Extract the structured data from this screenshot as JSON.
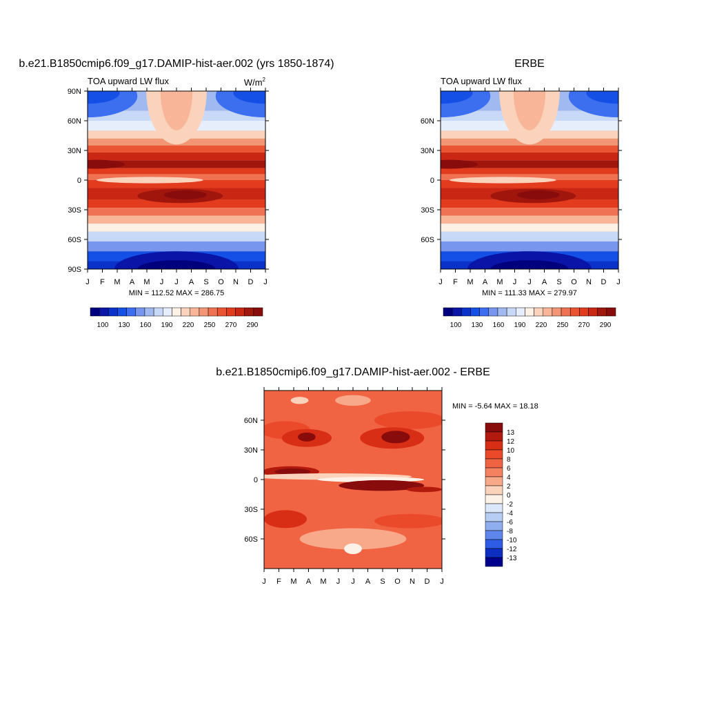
{
  "chart_data": [
    {
      "type": "heatmap",
      "title": "b.e21.B1850cmip6.f09_g17.DAMIP-hist-aer.002 (yrs 1850-1874)",
      "subtitle": "TOA upward LW flux",
      "units_base": "W/m",
      "units_exp": "2",
      "x_ticks": [
        "J",
        "F",
        "M",
        "A",
        "M",
        "J",
        "J",
        "A",
        "S",
        "O",
        "N",
        "D",
        "J"
      ],
      "y_ticks": [
        "90N",
        "60N",
        "30N",
        "0",
        "30S",
        "60S",
        "90S"
      ],
      "y_tick_values": [
        90,
        60,
        30,
        0,
        -30,
        -60,
        -90
      ],
      "ylim": [
        -90,
        90
      ],
      "stats": "MIN = 112.52 MAX = 286.75",
      "colorbar": {
        "levels": [
          100,
          110,
          120,
          130,
          140,
          150,
          160,
          170,
          180,
          190,
          200,
          210,
          220,
          230,
          240,
          250,
          260,
          270,
          280,
          290
        ],
        "labels": [
          "100",
          "130",
          "160",
          "190",
          "220",
          "250",
          "270",
          "290"
        ],
        "colors": [
          "#00007f",
          "#0a14a6",
          "#0a32c8",
          "#1450e6",
          "#3c6ef0",
          "#7896ee",
          "#a0b9f0",
          "#c8d9f8",
          "#e6eefb",
          "#fdf0e4",
          "#fbd3bd",
          "#f8b597",
          "#f39676",
          "#ee7253",
          "#ea5432",
          "#e23b1d",
          "#c92714",
          "#a0160c",
          "#880c0c"
        ]
      }
    },
    {
      "type": "heatmap",
      "title": "ERBE",
      "subtitle": "TOA upward LW flux",
      "x_ticks": [
        "J",
        "F",
        "M",
        "A",
        "M",
        "J",
        "J",
        "A",
        "S",
        "O",
        "N",
        "D",
        "J"
      ],
      "y_ticks": [
        "60N",
        "30N",
        "0",
        "30S",
        "60S"
      ],
      "y_tick_values": [
        60,
        30,
        0,
        -30,
        -60
      ],
      "ylim": [
        -90,
        90
      ],
      "stats": "MIN = 111.33 MAX = 279.97",
      "colorbar": {
        "levels": [
          100,
          110,
          120,
          130,
          140,
          150,
          160,
          170,
          180,
          190,
          200,
          210,
          220,
          230,
          240,
          250,
          260,
          270,
          280,
          290
        ],
        "labels": [
          "100",
          "130",
          "160",
          "190",
          "220",
          "250",
          "270",
          "290"
        ],
        "colors": [
          "#00007f",
          "#0a14a6",
          "#0a32c8",
          "#1450e6",
          "#3c6ef0",
          "#7896ee",
          "#a0b9f0",
          "#c8d9f8",
          "#e6eefb",
          "#fdf0e4",
          "#fbd3bd",
          "#f8b597",
          "#f39676",
          "#ee7253",
          "#ea5432",
          "#e23b1d",
          "#c92714",
          "#a0160c",
          "#880c0c"
        ]
      }
    },
    {
      "type": "heatmap",
      "title": "b.e21.B1850cmip6.f09_g17.DAMIP-hist-aer.002 - ERBE",
      "x_ticks": [
        "J",
        "F",
        "M",
        "A",
        "M",
        "J",
        "J",
        "A",
        "S",
        "O",
        "N",
        "D",
        "J"
      ],
      "y_ticks": [
        "60N",
        "30N",
        "0",
        "30S",
        "60S"
      ],
      "y_tick_values": [
        60,
        30,
        0,
        -30,
        -60
      ],
      "ylim": [
        -90,
        90
      ],
      "stats": "MIN =  -5.64 MAX =  18.18",
      "colorbar": {
        "labels": [
          "13",
          "12",
          "10",
          "8",
          "6",
          "4",
          "2",
          "0",
          "-2",
          "-4",
          "-6",
          "-8",
          "-10",
          "-12",
          "-13"
        ],
        "colors": [
          "#880c0c",
          "#b31a0e",
          "#d92e16",
          "#ea4a2a",
          "#f06443",
          "#f48160",
          "#f8a98a",
          "#fbd2bb",
          "#fdf2e8",
          "#dce8fa",
          "#b7cdf3",
          "#8eaef0",
          "#5f86ec",
          "#2f5ce4",
          "#0d2ec0",
          "#00008c"
        ]
      }
    }
  ]
}
